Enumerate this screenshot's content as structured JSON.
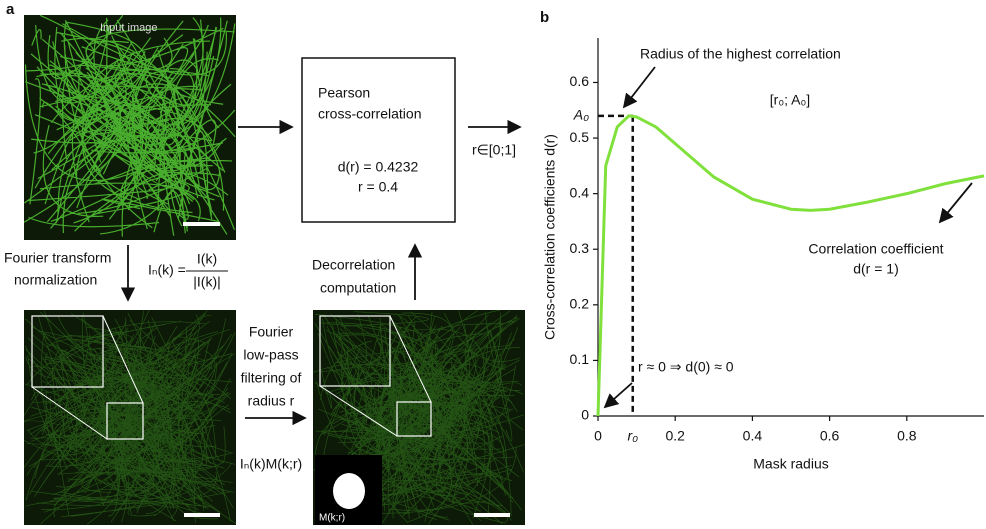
{
  "panel_a": {
    "label": "a",
    "input_label": "Input image",
    "fourier_text": [
      "Fourier transform",
      "normalization"
    ],
    "formula": {
      "lhs": "Iₙ(k) =",
      "numerator": "I(k)",
      "denominator": "|I(k)|"
    },
    "box_text": [
      "Pearson",
      "cross-correlation"
    ],
    "box_values": [
      "d(r) = 0.4232",
      "r = 0.4"
    ],
    "range_text": "r∈[0;1]",
    "decorrelation_text": [
      "Decorrelation",
      "computation"
    ],
    "filter_text": [
      "Fourier",
      "low-pass",
      "filtering of",
      "radius r"
    ],
    "filter_formula": "Iₙ(k)M(k;r)",
    "mask_label": "M(k;r)"
  },
  "chart_data": {
    "type": "line",
    "label": "b",
    "x_label": "Mask radius",
    "y_label": "Cross-correlation coefficients d(r)",
    "xlim": [
      0,
      1
    ],
    "ylim": [
      0,
      0.68
    ],
    "xticks": [
      0,
      0.2,
      0.4,
      0.6,
      0.8
    ],
    "yticks": [
      0,
      0.1,
      0.2,
      0.3,
      0.4,
      0.5,
      0.6
    ],
    "x": [
      0,
      0.02,
      0.05,
      0.08,
      0.1,
      0.15,
      0.2,
      0.3,
      0.4,
      0.5,
      0.55,
      0.6,
      0.7,
      0.8,
      0.9,
      1.0
    ],
    "series": [
      {
        "color": "#80e03c",
        "values": [
          0,
          0.45,
          0.52,
          0.54,
          0.538,
          0.52,
          0.49,
          0.43,
          0.39,
          0.372,
          0.37,
          0.372,
          0.385,
          0.4,
          0.418,
          0.432
        ]
      }
    ],
    "peak": {
      "x": 0.09,
      "x_label": "r₀",
      "y": 0.54,
      "y_label": "A₀"
    },
    "annotations": [
      "Radius of the highest correlation",
      "[r₀; A₀]",
      "Correlation coefficient",
      "d(r = 1)",
      "r ≈ 0 ⇒ d(0) ≈ 0"
    ]
  }
}
